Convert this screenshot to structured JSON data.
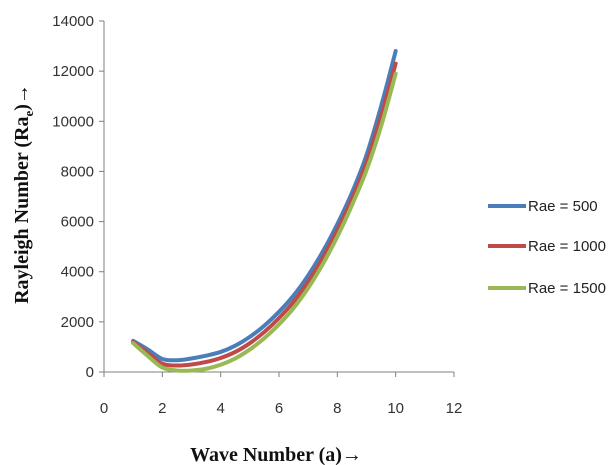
{
  "chart_data": {
    "type": "line",
    "xlabel": "Wave Number (a)→",
    "ylabel_main": "Rayleigh Number (Ra",
    "ylabel_sub": "e",
    "ylabel_tail": ")→",
    "xlim": [
      0,
      12
    ],
    "ylim": [
      0,
      14000
    ],
    "x_ticks": [
      0,
      2,
      4,
      6,
      8,
      10,
      12
    ],
    "y_ticks": [
      0,
      2000,
      4000,
      6000,
      8000,
      10000,
      12000,
      14000
    ],
    "x_tick_labels": [
      "0",
      "2",
      "4",
      "6",
      "8",
      "10",
      "12"
    ],
    "y_tick_labels": [
      "0",
      "2000",
      "4000",
      "6000",
      "8000",
      "10000",
      "12000",
      "14000"
    ],
    "grid": false,
    "legend_position": "right",
    "x": [
      1,
      1.5,
      2,
      2.5,
      3,
      3.5,
      4,
      4.5,
      5,
      5.5,
      6,
      6.5,
      7,
      7.5,
      8,
      8.5,
      9,
      9.5,
      10
    ],
    "series": [
      {
        "name": "Rae = 500",
        "color": "#4a7ebb",
        "values": [
          1240,
          900,
          520,
          470,
          540,
          650,
          800,
          1050,
          1400,
          1850,
          2400,
          3050,
          3850,
          4800,
          5900,
          7150,
          8650,
          10600,
          12800
        ]
      },
      {
        "name": "Rae = 1000",
        "color": "#be4b48",
        "values": [
          1200,
          760,
          330,
          260,
          300,
          400,
          560,
          800,
          1150,
          1600,
          2150,
          2800,
          3600,
          4550,
          5650,
          6900,
          8350,
          10200,
          12300
        ]
      },
      {
        "name": "Rae = 1500",
        "color": "#98b954",
        "values": [
          1150,
          640,
          180,
          60,
          60,
          130,
          290,
          540,
          900,
          1350,
          1900,
          2550,
          3350,
          4300,
          5400,
          6650,
          8050,
          9800,
          11900
        ]
      }
    ]
  }
}
